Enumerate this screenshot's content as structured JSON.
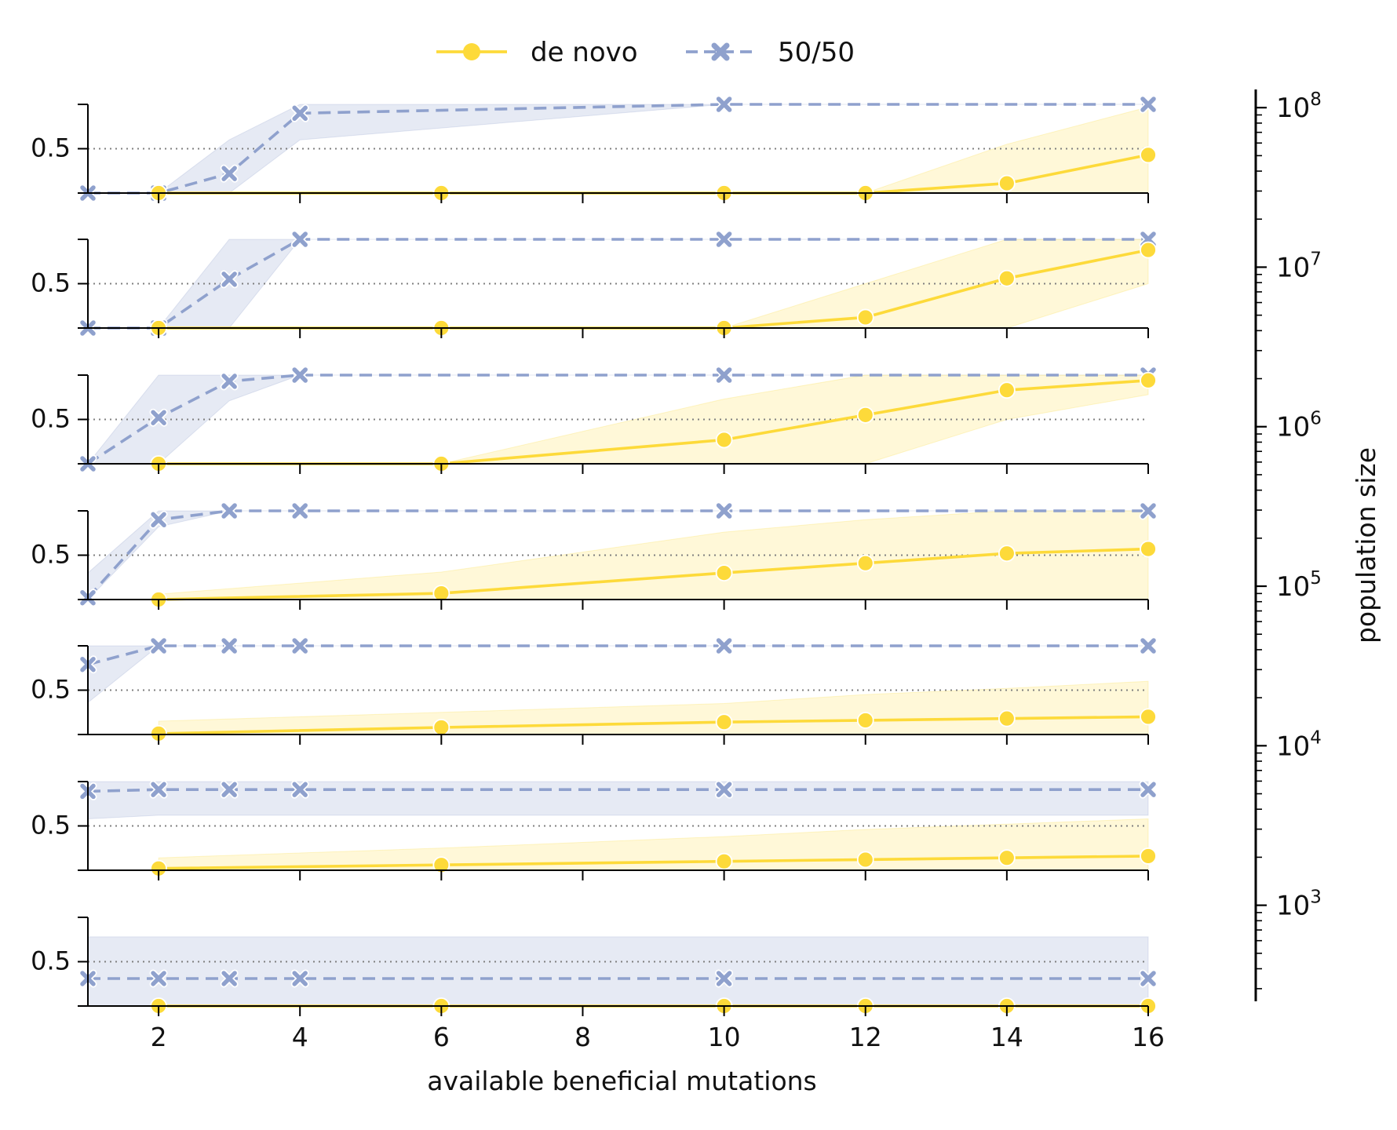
{
  "colors": {
    "de_novo": "#FDDA3A",
    "fifty_fifty": "#8FA1CD",
    "de_novo_band": "#FDDA3A",
    "fifty_fifty_band": "#8FA1CD",
    "reference_line": "#808080",
    "axis": "#000000"
  },
  "legend": {
    "placement": "top-center",
    "items": [
      {
        "label": "de novo",
        "marker": "circle",
        "linestyle": "solid",
        "color_key": "de_novo"
      },
      {
        "label": "50/50",
        "marker": "x",
        "linestyle": "dashed",
        "color_key": "fifty_fifty"
      }
    ]
  },
  "chart_data": {
    "type": "line",
    "layout": "small-multiples (7 rows, shared x axis)",
    "xlabel": "available beneficial mutations",
    "x_ticks": [
      2,
      4,
      6,
      8,
      10,
      12,
      14,
      16
    ],
    "xlim": [
      1,
      16
    ],
    "y_ticks": [
      0.5
    ],
    "y_tick_labels": [
      "0.5"
    ],
    "ylim": [
      0,
      1
    ],
    "reference_line_y": 0.5,
    "grid": false,
    "colorbar": {
      "label": "population size",
      "scale": "log",
      "range": [
        250,
        130000000
      ],
      "tick_values": [
        1000,
        10000,
        100000,
        1000000,
        10000000,
        100000000
      ],
      "tick_labels": [
        {
          "base": "10",
          "exp": "3"
        },
        {
          "base": "10",
          "exp": "4"
        },
        {
          "base": "10",
          "exp": "5"
        },
        {
          "base": "10",
          "exp": "6"
        },
        {
          "base": "10",
          "exp": "7"
        },
        {
          "base": "10",
          "exp": "8"
        }
      ]
    },
    "panels": [
      {
        "series": [
          {
            "name": "de novo",
            "x": [
              2,
              6,
              10,
              12,
              14,
              16
            ],
            "y": [
              0.0,
              0.0,
              0.0,
              0.0,
              0.11,
              0.43
            ],
            "lower": [
              0.0,
              0.0,
              0.0,
              0.0,
              0.0,
              0.0
            ],
            "upper": [
              0.0,
              0.0,
              0.0,
              0.0,
              0.55,
              0.97
            ]
          },
          {
            "name": "50/50",
            "x": [
              1,
              2,
              3,
              4,
              10,
              16
            ],
            "y": [
              0.0,
              0.0,
              0.22,
              0.9,
              1.0,
              1.0
            ],
            "lower": [
              0.0,
              0.0,
              0.0,
              0.6,
              1.0,
              1.0
            ],
            "upper": [
              0.0,
              0.0,
              0.6,
              1.0,
              1.0,
              1.0
            ]
          }
        ]
      },
      {
        "series": [
          {
            "name": "de novo",
            "x": [
              2,
              6,
              10,
              12,
              14,
              16
            ],
            "y": [
              0.0,
              0.0,
              0.0,
              0.12,
              0.56,
              0.88
            ],
            "lower": [
              0.0,
              0.0,
              0.0,
              0.0,
              0.0,
              0.5
            ],
            "upper": [
              0.0,
              0.0,
              0.0,
              0.5,
              1.0,
              1.0
            ]
          },
          {
            "name": "50/50",
            "x": [
              1,
              2,
              3,
              4,
              10,
              16
            ],
            "y": [
              0.0,
              0.0,
              0.55,
              1.0,
              1.0,
              1.0
            ],
            "lower": [
              0.0,
              0.0,
              0.0,
              1.0,
              1.0,
              1.0
            ],
            "upper": [
              0.0,
              0.0,
              1.0,
              1.0,
              1.0,
              1.0
            ]
          }
        ]
      },
      {
        "series": [
          {
            "name": "de novo",
            "x": [
              2,
              6,
              10,
              12,
              14,
              16
            ],
            "y": [
              0.0,
              0.0,
              0.27,
              0.55,
              0.83,
              0.94
            ],
            "lower": [
              0.0,
              0.0,
              0.0,
              0.0,
              0.5,
              0.78
            ],
            "upper": [
              0.0,
              0.0,
              0.73,
              1.0,
              1.0,
              1.0
            ]
          },
          {
            "name": "50/50",
            "x": [
              1,
              2,
              3,
              4,
              10,
              16
            ],
            "y": [
              0.0,
              0.52,
              0.93,
              1.0,
              1.0,
              1.0
            ],
            "lower": [
              0.0,
              0.0,
              0.71,
              1.0,
              1.0,
              1.0
            ],
            "upper": [
              0.0,
              1.0,
              1.0,
              1.0,
              1.0,
              1.0
            ]
          }
        ]
      },
      {
        "series": [
          {
            "name": "de novo",
            "x": [
              2,
              6,
              10,
              12,
              14,
              16
            ],
            "y": [
              0.0,
              0.07,
              0.3,
              0.41,
              0.52,
              0.57
            ],
            "lower": [
              0.0,
              0.0,
              0.0,
              0.0,
              0.0,
              0.0
            ],
            "upper": [
              0.06,
              0.31,
              0.76,
              0.9,
              1.0,
              1.0
            ]
          },
          {
            "name": "50/50",
            "x": [
              1,
              2,
              3,
              4,
              10,
              16
            ],
            "y": [
              0.02,
              0.9,
              1.0,
              1.0,
              1.0,
              1.0
            ],
            "lower": [
              0.0,
              0.82,
              1.0,
              1.0,
              1.0,
              1.0
            ],
            "upper": [
              0.3,
              1.0,
              1.0,
              1.0,
              1.0,
              1.0
            ]
          }
        ]
      },
      {
        "series": [
          {
            "name": "de novo",
            "x": [
              2,
              6,
              10,
              12,
              14,
              16
            ],
            "y": [
              0.01,
              0.08,
              0.14,
              0.16,
              0.18,
              0.2
            ],
            "lower": [
              0.0,
              0.0,
              0.0,
              0.0,
              0.0,
              0.0
            ],
            "upper": [
              0.15,
              0.25,
              0.35,
              0.45,
              0.52,
              0.6
            ]
          },
          {
            "name": "50/50",
            "x": [
              1,
              2,
              3,
              4,
              10,
              16
            ],
            "y": [
              0.79,
              1.0,
              1.0,
              1.0,
              1.0,
              1.0
            ],
            "lower": [
              0.36,
              1.0,
              1.0,
              1.0,
              1.0,
              1.0
            ],
            "upper": [
              1.0,
              1.0,
              1.0,
              1.0,
              1.0,
              1.0
            ]
          }
        ]
      },
      {
        "series": [
          {
            "name": "de novo",
            "x": [
              2,
              6,
              10,
              12,
              14,
              16
            ],
            "y": [
              0.02,
              0.06,
              0.1,
              0.12,
              0.14,
              0.16
            ],
            "lower": [
              0.0,
              0.0,
              0.0,
              0.0,
              0.0,
              0.0
            ],
            "upper": [
              0.14,
              0.25,
              0.38,
              0.46,
              0.52,
              0.58
            ]
          },
          {
            "name": "50/50",
            "x": [
              1,
              2,
              3,
              4,
              10,
              16
            ],
            "y": [
              0.89,
              0.91,
              0.91,
              0.91,
              0.91,
              0.91
            ],
            "lower": [
              0.58,
              0.62,
              0.62,
              0.62,
              0.62,
              0.62
            ],
            "upper": [
              1.0,
              1.0,
              1.0,
              1.0,
              1.0,
              1.0
            ]
          }
        ]
      },
      {
        "series": [
          {
            "name": "de novo",
            "x": [
              2,
              6,
              10,
              12,
              14,
              16
            ],
            "y": [
              0.0,
              0.0,
              0.0,
              0.0,
              0.0,
              0.0
            ],
            "lower": [
              0.0,
              0.0,
              0.0,
              0.0,
              0.0,
              0.0
            ],
            "upper": [
              0.0,
              0.0,
              0.0,
              0.0,
              0.0,
              0.0
            ]
          },
          {
            "name": "50/50",
            "x": [
              1,
              2,
              3,
              4,
              10,
              16
            ],
            "y": [
              0.31,
              0.31,
              0.31,
              0.31,
              0.31,
              0.31
            ],
            "lower": [
              0.0,
              0.0,
              0.0,
              0.0,
              0.0,
              0.0
            ],
            "upper": [
              0.78,
              0.78,
              0.78,
              0.78,
              0.78,
              0.78
            ]
          }
        ]
      }
    ]
  }
}
